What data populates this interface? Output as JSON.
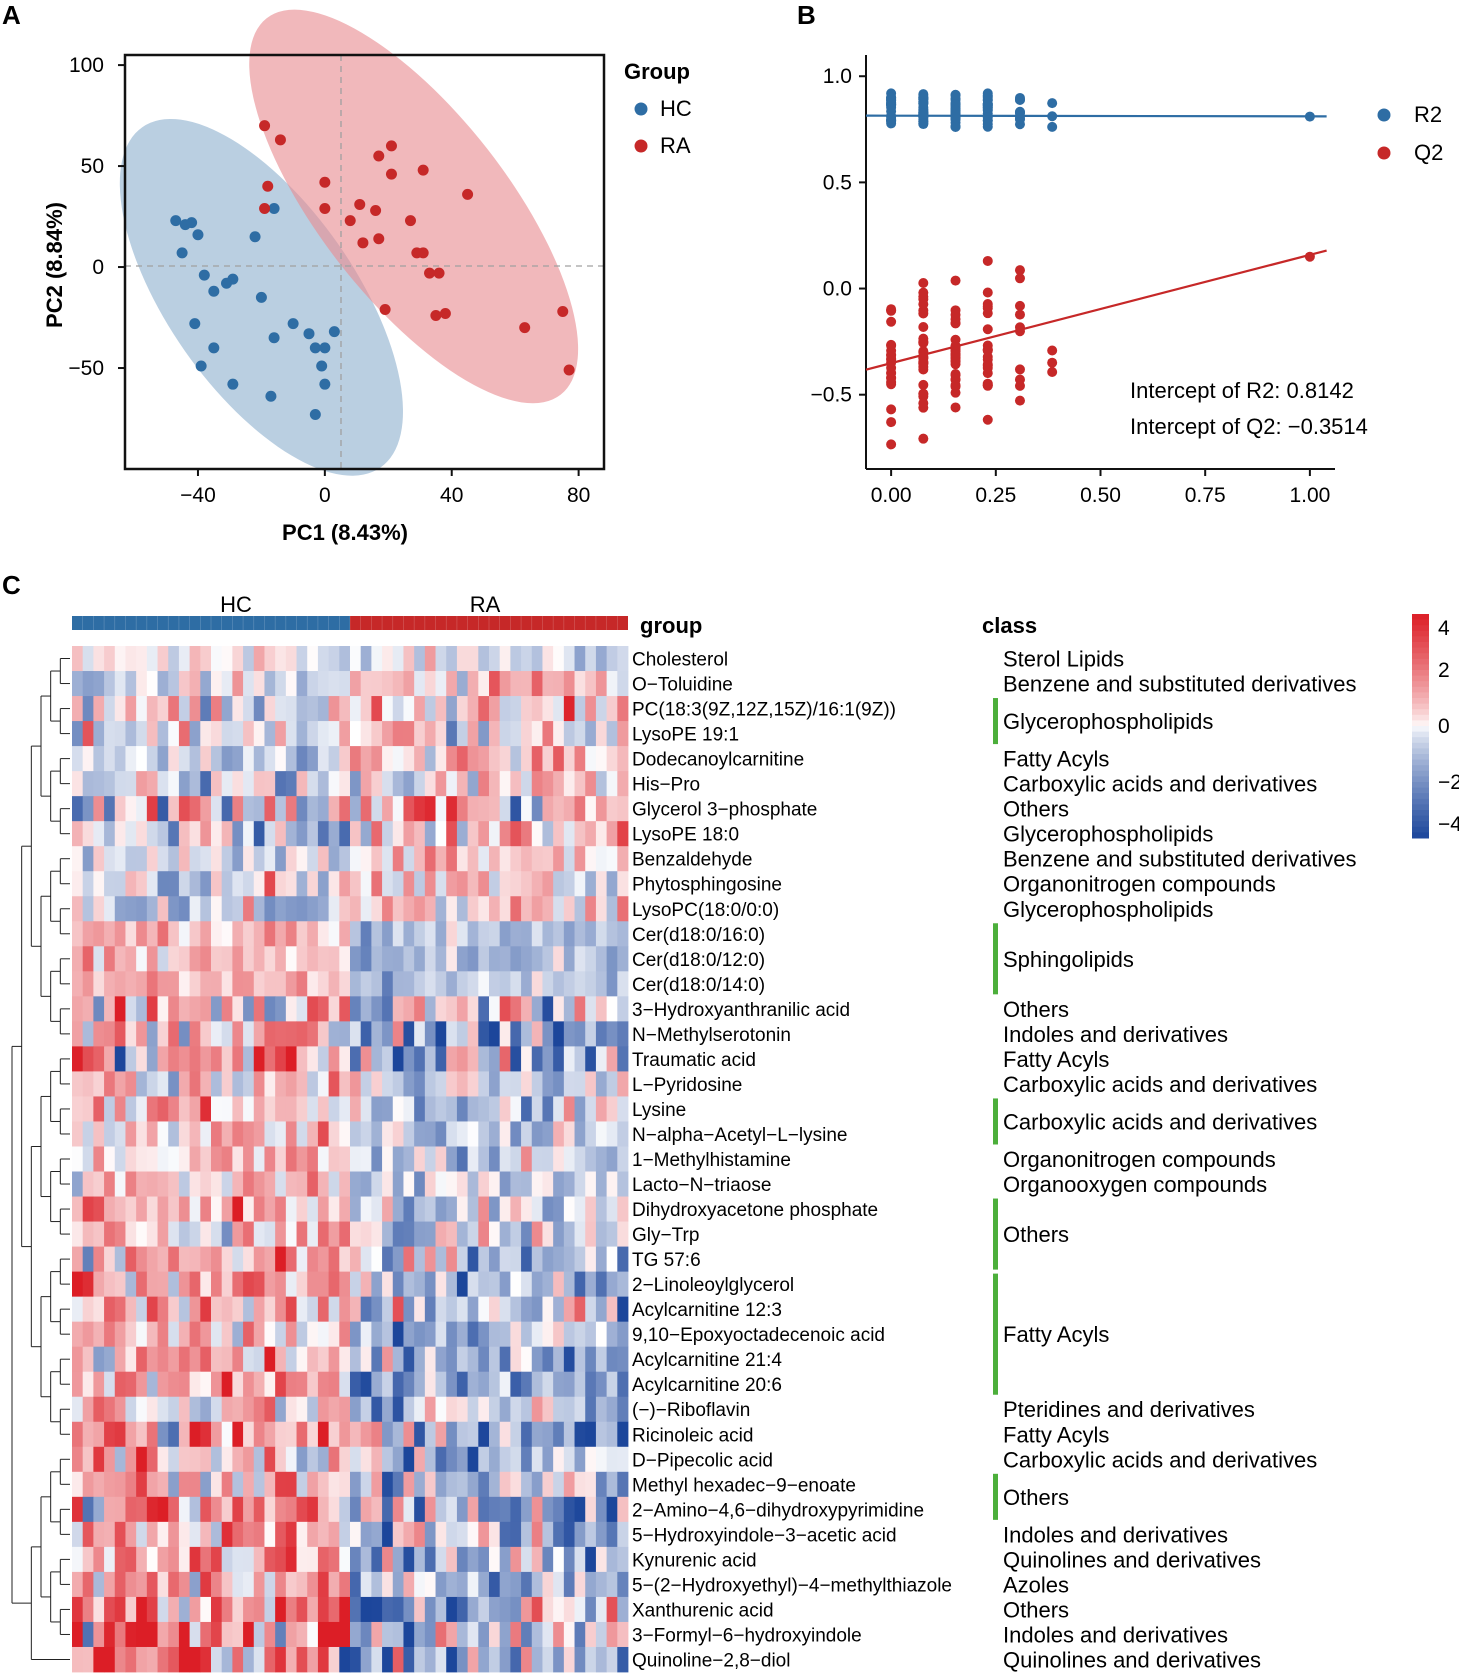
{
  "panels": {
    "a": "A",
    "b": "B",
    "c": "C"
  },
  "colors": {
    "hc": "#2e6da4",
    "ra": "#c62828",
    "hc_fill": "#8fb1cf",
    "ra_fill": "#e98d92",
    "green": "#4caf3b"
  },
  "chart_data": [
    {
      "type": "scatter",
      "panel": "A",
      "xlabel": "PC1 (8.43%)",
      "ylabel": "PC2 (8.84%)",
      "xlim": [
        -63,
        88
      ],
      "ylim": [
        -100,
        105
      ],
      "xticks": [
        -40,
        0,
        40,
        80
      ],
      "yticks": [
        -50,
        0,
        50,
        100
      ],
      "legend_title": "Group",
      "legend_position": "right",
      "series": [
        {
          "name": "HC",
          "points": [
            [
              -47,
              23
            ],
            [
              -44,
              21
            ],
            [
              -42,
              22
            ],
            [
              -40,
              16
            ],
            [
              -45,
              7
            ],
            [
              -38,
              -4
            ],
            [
              -29,
              -6
            ],
            [
              -31,
              -8
            ],
            [
              -35,
              -12
            ],
            [
              -41,
              -28
            ],
            [
              -35,
              -40
            ],
            [
              -39,
              -49
            ],
            [
              -29,
              -58
            ],
            [
              -16,
              29
            ],
            [
              -22,
              15
            ],
            [
              -20,
              -15
            ],
            [
              -16,
              -35
            ],
            [
              -10,
              -28
            ],
            [
              -5,
              -33
            ],
            [
              -3,
              -40
            ],
            [
              -1,
              -49
            ],
            [
              -3,
              -73
            ],
            [
              0,
              -58
            ],
            [
              0,
              -40
            ],
            [
              3,
              -32
            ],
            [
              -17,
              -64
            ]
          ]
        },
        {
          "name": "RA",
          "points": [
            [
              -19,
              70
            ],
            [
              -14,
              63
            ],
            [
              -18,
              40
            ],
            [
              -19,
              29
            ],
            [
              0,
              42
            ],
            [
              0,
              29
            ],
            [
              8,
              23
            ],
            [
              11,
              31
            ],
            [
              16,
              28
            ],
            [
              17,
              55
            ],
            [
              21,
              60
            ],
            [
              21,
              46
            ],
            [
              31,
              48
            ],
            [
              27,
              23
            ],
            [
              29,
              7
            ],
            [
              31,
              7
            ],
            [
              33,
              -3
            ],
            [
              36,
              -3
            ],
            [
              38,
              -23
            ],
            [
              35,
              -24
            ],
            [
              45,
              36
            ],
            [
              63,
              -30
            ],
            [
              75,
              -22
            ],
            [
              77,
              -51
            ],
            [
              19,
              -21
            ],
            [
              12,
              12
            ],
            [
              17,
              14
            ]
          ]
        }
      ]
    },
    {
      "type": "scatter",
      "panel": "B",
      "xlim": [
        -0.06,
        1.06
      ],
      "ylim": [
        -0.85,
        1.1
      ],
      "xticks": [
        "0.00",
        "0.25",
        "0.50",
        "0.75",
        "1.00"
      ],
      "yticks": [
        "1.0",
        "0.5",
        "0.0",
        "-0.5"
      ],
      "legend_position": "right",
      "series": [
        {
          "name": "R2",
          "x_levels": [
            0.0,
            0.0769,
            0.1538,
            0.2308,
            0.3077,
            0.3846
          ],
          "y_range": [
            0.76,
            0.92
          ],
          "permuted_x": 1.0,
          "permuted_y": 0.81,
          "intercept": 0.8142,
          "slope": -0.003
        },
        {
          "name": "Q2",
          "x_levels": [
            0.0,
            0.0769,
            0.1538,
            0.2308,
            0.3077,
            0.3846
          ],
          "y_range": [
            -0.76,
            0.13
          ],
          "permuted_x": 1.0,
          "permuted_y": 0.15,
          "intercept": -0.3514,
          "slope": 0.51
        }
      ],
      "annotations": [
        "Intercept of R2: 0.8142",
        "Intercept of Q2: −0.3514"
      ]
    },
    {
      "type": "heatmap",
      "panel": "C",
      "column_groups": [
        {
          "name": "HC",
          "n": 26
        },
        {
          "name": "RA",
          "n": 26
        }
      ],
      "group_label": "group",
      "class_label": "class",
      "color_scale": {
        "min": -4,
        "max": 4,
        "ticks": [
          "4",
          "2",
          "0",
          "−2",
          "−4"
        ]
      },
      "rows": [
        "Cholesterol",
        "O−Toluidine",
        "PC(18:3(9Z,12Z,15Z)/16:1(9Z))",
        "LysoPE 19:1",
        "Dodecanoylcarnitine",
        "His−Pro",
        "Glycerol 3−phosphate",
        "LysoPE 18:0",
        "Benzaldehyde",
        "Phytosphingosine",
        "LysoPC(18:0/0:0)",
        "Cer(d18:0/16:0)",
        "Cer(d18:0/12:0)",
        "Cer(d18:0/14:0)",
        "3−Hydroxyanthranilic acid",
        "N−Methylserotonin",
        "Traumatic acid",
        "L−Pyridosine",
        "Lysine",
        "N−alpha−Acetyl−L−lysine",
        "1−Methylhistamine",
        "Lacto−N−triaose",
        "Dihydroxyacetone phosphate",
        "Gly−Trp",
        "TG 57:6",
        "2−Linoleoylglycerol",
        "Acylcarnitine 12:3",
        "9,10−Epoxyoctadecenoic acid",
        "Acylcarnitine 21:4",
        "Acylcarnitine 20:6",
        "(−)−Riboflavin",
        "Ricinoleic acid",
        "D−Pipecolic acid",
        "Methyl hexadec−9−enoate",
        "2−Amino−4,6−dihydroxypyrimidine",
        "5−Hydroxyindole−3−acetic acid",
        "Kynurenic acid",
        "5−(2−Hydroxyethyl)−4−methylthiazole",
        "Xanthurenic acid",
        "3−Formyl−6−hydroxyindole",
        "Quinoline−2,8−diol"
      ],
      "row_bias": [
        0.1,
        -0.6,
        -0.5,
        -0.3,
        -0.4,
        -0.3,
        -0.3,
        -0.4,
        -0.5,
        -0.6,
        -0.5,
        0.9,
        0.9,
        0.9,
        0.8,
        1.1,
        1.3,
        0.4,
        0.7,
        0.8,
        0.7,
        0.7,
        0.9,
        0.9,
        1.0,
        1.0,
        1.0,
        1.1,
        1.0,
        1.0,
        0.8,
        1.4,
        1.1,
        0.9,
        1.4,
        1.2,
        1.2,
        1.3,
        1.6,
        1.6,
        1.5
      ],
      "row_sd": [
        0.7,
        0.8,
        1.2,
        1.0,
        0.9,
        1.0,
        2.0,
        1.3,
        1.0,
        1.1,
        1.1,
        0.6,
        0.6,
        0.6,
        1.5,
        1.6,
        2.3,
        1.1,
        1.1,
        1.1,
        1.0,
        1.0,
        1.2,
        1.2,
        1.3,
        1.3,
        1.3,
        1.3,
        1.2,
        1.2,
        1.1,
        1.8,
        1.4,
        1.2,
        1.8,
        1.5,
        1.5,
        1.6,
        2.0,
        2.0,
        1.9
      ],
      "classes": [
        {
          "label": "Sterol Lipids",
          "row_start": 0,
          "row_end": 0,
          "bar": false
        },
        {
          "label": "Benzene and substituted derivatives",
          "row_start": 1,
          "row_end": 1,
          "bar": false
        },
        {
          "label": "Glycerophospholipids",
          "row_start": 2,
          "row_end": 3,
          "bar": true
        },
        {
          "label": "Fatty Acyls",
          "row_start": 4,
          "row_end": 4,
          "bar": false
        },
        {
          "label": "Carboxylic acids and derivatives",
          "row_start": 5,
          "row_end": 5,
          "bar": false
        },
        {
          "label": "Others",
          "row_start": 6,
          "row_end": 6,
          "bar": false
        },
        {
          "label": "Glycerophospholipids",
          "row_start": 7,
          "row_end": 7,
          "bar": false
        },
        {
          "label": "Benzene and substituted derivatives",
          "row_start": 8,
          "row_end": 8,
          "bar": false
        },
        {
          "label": "Organonitrogen compounds",
          "row_start": 9,
          "row_end": 9,
          "bar": false
        },
        {
          "label": "Glycerophospholipids",
          "row_start": 10,
          "row_end": 10,
          "bar": false
        },
        {
          "label": "Sphingolipids",
          "row_start": 11,
          "row_end": 13,
          "bar": true
        },
        {
          "label": "Others",
          "row_start": 14,
          "row_end": 14,
          "bar": false
        },
        {
          "label": "Indoles and derivatives",
          "row_start": 15,
          "row_end": 15,
          "bar": false
        },
        {
          "label": "Fatty Acyls",
          "row_start": 16,
          "row_end": 16,
          "bar": false
        },
        {
          "label": "Carboxylic acids and derivatives",
          "row_start": 17,
          "row_end": 17,
          "bar": false
        },
        {
          "label": "Carboxylic acids and derivatives",
          "row_start": 18,
          "row_end": 19,
          "bar": true
        },
        {
          "label": "Organonitrogen compounds",
          "row_start": 20,
          "row_end": 20,
          "bar": false
        },
        {
          "label": "Organooxygen compounds",
          "row_start": 21,
          "row_end": 21,
          "bar": false
        },
        {
          "label": "Others",
          "row_start": 22,
          "row_end": 24,
          "bar": true
        },
        {
          "label": "Fatty Acyls",
          "row_start": 25,
          "row_end": 29,
          "bar": true
        },
        {
          "label": "Pteridines and derivatives",
          "row_start": 30,
          "row_end": 30,
          "bar": false
        },
        {
          "label": "Fatty Acyls",
          "row_start": 31,
          "row_end": 31,
          "bar": false
        },
        {
          "label": "Carboxylic acids and derivatives",
          "row_start": 32,
          "row_end": 32,
          "bar": false
        },
        {
          "label": "Others",
          "row_start": 33,
          "row_end": 34,
          "bar": true
        },
        {
          "label": "Indoles and derivatives",
          "row_start": 35,
          "row_end": 35,
          "bar": false
        },
        {
          "label": "Quinolines and derivatives",
          "row_start": 36,
          "row_end": 36,
          "bar": false
        },
        {
          "label": "Azoles",
          "row_start": 37,
          "row_end": 37,
          "bar": false
        },
        {
          "label": "Others",
          "row_start": 38,
          "row_end": 38,
          "bar": false
        },
        {
          "label": "Indoles and derivatives",
          "row_start": 39,
          "row_end": 39,
          "bar": false
        },
        {
          "label": "Quinolines and derivatives",
          "row_start": 40,
          "row_end": 40,
          "bar": false
        }
      ]
    }
  ]
}
